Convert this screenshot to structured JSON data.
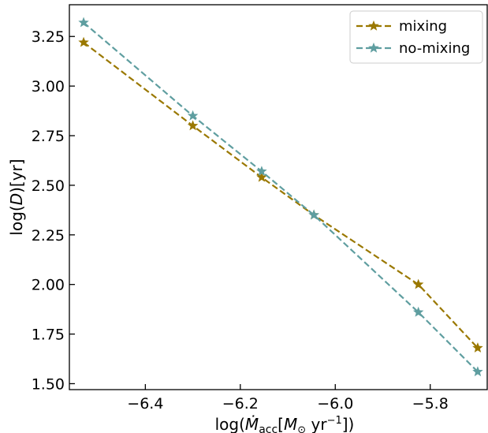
{
  "chart_data": {
    "type": "line",
    "xlabel": "log(Ṁacc[M⊙ yr−1])",
    "ylabel": "log(D)[yr]",
    "xlim": [
      -6.56,
      -5.68
    ],
    "ylim": [
      1.47,
      3.41
    ],
    "xticks": [
      -6.4,
      -6.2,
      -6.0,
      -5.8
    ],
    "xtick_labels": [
      "−6.4",
      "−6.2",
      "−6.0",
      "−5.8"
    ],
    "yticks": [
      1.5,
      1.75,
      2.0,
      2.25,
      2.5,
      2.75,
      3.0,
      3.25
    ],
    "ytick_labels": [
      "1.50",
      "1.75",
      "2.00",
      "2.25",
      "2.50",
      "2.75",
      "3.00",
      "3.25"
    ],
    "grid": false,
    "legend_position": "top-right",
    "series": [
      {
        "name": "mixing",
        "color": "#9a7800",
        "marker": "star",
        "linestyle": "dashed",
        "x": [
          -6.53,
          -6.3,
          -6.155,
          -6.045,
          -5.825,
          -5.7
        ],
        "y": [
          3.22,
          2.8,
          2.54,
          2.35,
          2.0,
          1.68
        ]
      },
      {
        "name": "no-mixing",
        "color": "#5f9ea0",
        "marker": "star",
        "linestyle": "dashed",
        "x": [
          -6.53,
          -6.3,
          -6.155,
          -6.045,
          -5.825,
          -5.7
        ],
        "y": [
          3.32,
          2.85,
          2.57,
          2.35,
          1.86,
          1.56
        ]
      }
    ]
  }
}
